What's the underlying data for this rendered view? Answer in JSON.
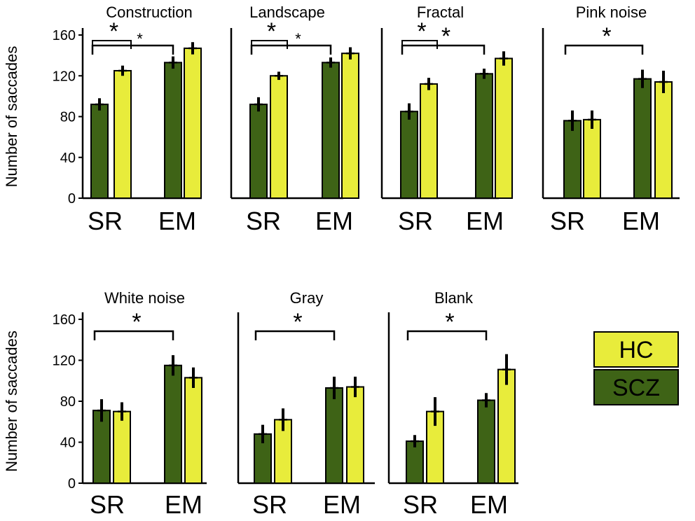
{
  "chart_data": {
    "type": "bar",
    "ylabel": "Number of saccades",
    "ylim": [
      0,
      160
    ],
    "yticks": [
      0,
      40,
      80,
      120,
      160
    ],
    "categories": [
      "SR",
      "EM"
    ],
    "legend": [
      {
        "name": "HC",
        "color": "#e8ec3b"
      },
      {
        "name": "SCZ",
        "color": "#3e6316"
      }
    ],
    "colors": {
      "SCZ": "#3e6316",
      "HC": "#e8ec3b",
      "outline": "#000000"
    },
    "panels": [
      {
        "title": "Construction",
        "SCZ": [
          92,
          133
        ],
        "HC": [
          125,
          147
        ],
        "SCZ_err": [
          6,
          6
        ],
        "HC_err": [
          5,
          6
        ],
        "sig": [
          {
            "type": "within-SR",
            "label": "*"
          },
          {
            "type": "SR-EM",
            "label": "*"
          }
        ]
      },
      {
        "title": "Landscape",
        "SCZ": [
          92,
          133
        ],
        "HC": [
          120,
          142
        ],
        "SCZ_err": [
          7,
          5
        ],
        "HC_err": [
          4,
          6
        ],
        "sig": [
          {
            "type": "within-SR",
            "label": "*"
          },
          {
            "type": "SR-EM",
            "label": "*"
          }
        ]
      },
      {
        "title": "Fractal",
        "SCZ": [
          85,
          122
        ],
        "HC": [
          112,
          137
        ],
        "SCZ_err": [
          8,
          5
        ],
        "HC_err": [
          6,
          7
        ],
        "sig": [
          {
            "type": "within-SR",
            "label": "*"
          },
          {
            "type": "SR-EM",
            "label": "*"
          }
        ]
      },
      {
        "title": "Pink noise",
        "SCZ": [
          76,
          117
        ],
        "HC": [
          77,
          114
        ],
        "SCZ_err": [
          10,
          9
        ],
        "HC_err": [
          9,
          11
        ],
        "sig": [
          {
            "type": "SR-EM",
            "label": "*"
          }
        ]
      },
      {
        "title": "White noise",
        "SCZ": [
          71,
          115
        ],
        "HC": [
          70,
          103
        ],
        "SCZ_err": [
          11,
          10
        ],
        "HC_err": [
          9,
          10
        ],
        "sig": [
          {
            "type": "SR-EM",
            "label": "*"
          }
        ]
      },
      {
        "title": "Gray",
        "SCZ": [
          48,
          93
        ],
        "HC": [
          62,
          94
        ],
        "SCZ_err": [
          9,
          11
        ],
        "HC_err": [
          11,
          10
        ],
        "sig": [
          {
            "type": "SR-EM",
            "label": "*"
          }
        ]
      },
      {
        "title": "Blank",
        "SCZ": [
          41,
          81
        ],
        "HC": [
          70,
          111
        ],
        "SCZ_err": [
          6,
          7
        ],
        "HC_err": [
          14,
          15
        ],
        "sig": [
          {
            "type": "SR-EM",
            "label": "*"
          }
        ]
      }
    ]
  }
}
